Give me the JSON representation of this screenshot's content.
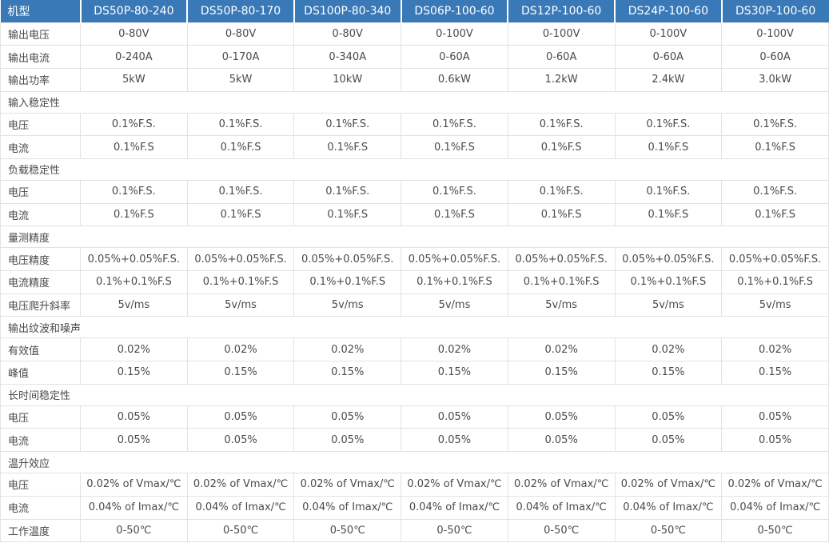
{
  "table": {
    "colors": {
      "header_bg": "#3a79b8",
      "header_text": "#ffffff",
      "border": "#e2e2e2",
      "text": "#4a4a4a"
    },
    "header": {
      "label": "机型",
      "models": [
        "DS50P-80-240",
        "DS50P-80-170",
        "DS100P-80-340",
        "DS06P-100-60",
        "DS12P-100-60",
        "DS24P-100-60",
        "DS30P-100-60"
      ]
    },
    "rows": [
      {
        "type": "data",
        "label": "输出电压",
        "values": [
          "0-80V",
          "0-80V",
          "0-80V",
          "0-100V",
          "0-100V",
          "0-100V",
          "0-100V"
        ]
      },
      {
        "type": "data",
        "label": "输出电流",
        "values": [
          "0-240A",
          "0-170A",
          "0-340A",
          "0-60A",
          "0-60A",
          "0-60A",
          "0-60A"
        ]
      },
      {
        "type": "data",
        "label": "输出功率",
        "values": [
          "5kW",
          "5kW",
          "10kW",
          "0.6kW",
          "1.2kW",
          "2.4kW",
          "3.0kW"
        ]
      },
      {
        "type": "section",
        "label": "输入稳定性"
      },
      {
        "type": "data",
        "label": "电压",
        "values": [
          "0.1%F.S.",
          "0.1%F.S.",
          "0.1%F.S.",
          "0.1%F.S.",
          "0.1%F.S.",
          "0.1%F.S.",
          "0.1%F.S."
        ]
      },
      {
        "type": "data",
        "label": "电流",
        "values": [
          "0.1%F.S",
          "0.1%F.S",
          "0.1%F.S",
          "0.1%F.S",
          "0.1%F.S",
          "0.1%F.S",
          "0.1%F.S"
        ]
      },
      {
        "type": "section",
        "label": "负载稳定性"
      },
      {
        "type": "data",
        "label": "电压",
        "values": [
          "0.1%F.S.",
          "0.1%F.S.",
          "0.1%F.S.",
          "0.1%F.S.",
          "0.1%F.S.",
          "0.1%F.S.",
          "0.1%F.S."
        ]
      },
      {
        "type": "data",
        "label": "电流",
        "values": [
          "0.1%F.S",
          "0.1%F.S",
          "0.1%F.S",
          "0.1%F.S",
          "0.1%F.S",
          "0.1%F.S",
          "0.1%F.S"
        ]
      },
      {
        "type": "section",
        "label": "量测精度"
      },
      {
        "type": "data",
        "label": "电压精度",
        "values": [
          "0.05%+0.05%F.S.",
          "0.05%+0.05%F.S.",
          "0.05%+0.05%F.S.",
          "0.05%+0.05%F.S.",
          "0.05%+0.05%F.S.",
          "0.05%+0.05%F.S.",
          "0.05%+0.05%F.S."
        ]
      },
      {
        "type": "data",
        "label": "电流精度",
        "values": [
          "0.1%+0.1%F.S",
          "0.1%+0.1%F.S",
          "0.1%+0.1%F.S",
          "0.1%+0.1%F.S",
          "0.1%+0.1%F.S",
          "0.1%+0.1%F.S",
          "0.1%+0.1%F.S"
        ]
      },
      {
        "type": "data",
        "label": "电压爬升斜率",
        "values": [
          "5v/ms",
          "5v/ms",
          "5v/ms",
          "5v/ms",
          "5v/ms",
          "5v/ms",
          "5v/ms"
        ]
      },
      {
        "type": "section",
        "label": "输出纹波和噪声"
      },
      {
        "type": "data",
        "label": "有效值",
        "values": [
          "0.02%",
          "0.02%",
          "0.02%",
          "0.02%",
          "0.02%",
          "0.02%",
          "0.02%"
        ]
      },
      {
        "type": "data",
        "label": "峰值",
        "values": [
          "0.15%",
          "0.15%",
          "0.15%",
          "0.15%",
          "0.15%",
          "0.15%",
          "0.15%"
        ]
      },
      {
        "type": "section",
        "label": "长时间稳定性"
      },
      {
        "type": "data",
        "label": "电压",
        "values": [
          "0.05%",
          "0.05%",
          "0.05%",
          "0.05%",
          "0.05%",
          "0.05%",
          "0.05%"
        ]
      },
      {
        "type": "data",
        "label": "电流",
        "values": [
          "0.05%",
          "0.05%",
          "0.05%",
          "0.05%",
          "0.05%",
          "0.05%",
          "0.05%"
        ]
      },
      {
        "type": "section",
        "label": "温升效应"
      },
      {
        "type": "data",
        "label": "电压",
        "values": [
          "0.02% of Vmax/℃",
          "0.02% of Vmax/℃",
          "0.02% of Vmax/℃",
          "0.02% of Vmax/℃",
          "0.02% of Vmax/℃",
          "0.02% of Vmax/℃",
          "0.02% of Vmax/℃"
        ]
      },
      {
        "type": "data",
        "label": "电流",
        "values": [
          "0.04% of Imax/℃",
          "0.04% of Imax/℃",
          "0.04% of Imax/℃",
          "0.04% of Imax/℃",
          "0.04% of Imax/℃",
          "0.04% of Imax/℃",
          "0.04% of Imax/℃"
        ]
      },
      {
        "type": "data",
        "label": "工作温度",
        "values": [
          "0-50℃",
          "0-50℃",
          "0-50℃",
          "0-50℃",
          "0-50℃",
          "0-50℃",
          "0-50℃"
        ]
      }
    ]
  }
}
